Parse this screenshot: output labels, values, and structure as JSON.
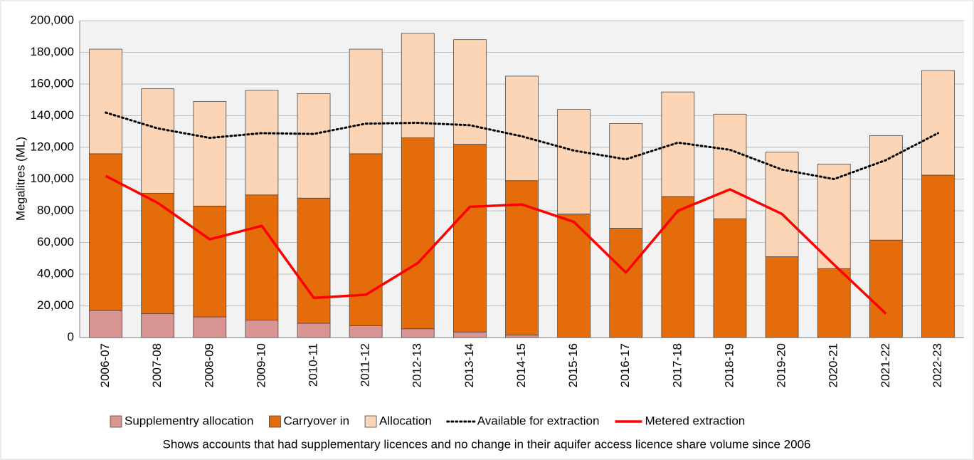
{
  "chart_data": {
    "type": "bar",
    "y_label": "Megalitres (ML)",
    "caption": "Shows accounts that had supplementary licences and no change in their aquifer access licence share volume since 2006",
    "categories": [
      "2006-07",
      "2007-08",
      "2008-09",
      "2009-10",
      "2010-11",
      "2011-12",
      "2012-13",
      "2013-14",
      "2014-15",
      "2015-16",
      "2016-17",
      "2017-18",
      "2018-19",
      "2019-20",
      "2020-21",
      "2021-22",
      "2022-23"
    ],
    "series": [
      {
        "name": "Supplementry allocation",
        "kind": "bar",
        "color": "#d99594",
        "values": [
          17000,
          15000,
          13000,
          11000,
          9000,
          7500,
          5500,
          3500,
          1500,
          0,
          0,
          0,
          0,
          0,
          0,
          0,
          0
        ]
      },
      {
        "name": "Carryover in",
        "kind": "bar",
        "color": "#e46c0a",
        "values": [
          99000,
          76000,
          70000,
          79000,
          79000,
          108500,
          120500,
          118500,
          97500,
          78000,
          69000,
          89000,
          75000,
          51000,
          43500,
          61500,
          102500
        ]
      },
      {
        "name": "Allocation",
        "kind": "bar",
        "color": "#fbd5b5",
        "values": [
          66000,
          66000,
          66000,
          66000,
          66000,
          66000,
          66000,
          66000,
          66000,
          66000,
          66000,
          66000,
          66000,
          66000,
          66000,
          66000,
          66000
        ]
      },
      {
        "name": "Available for extraction",
        "kind": "line",
        "style": "dotted",
        "color": "#000000",
        "values": [
          142000,
          132000,
          126000,
          129000,
          128500,
          135000,
          135500,
          134000,
          127000,
          118000,
          112500,
          123000,
          118500,
          106000,
          100000,
          112000,
          129000
        ]
      },
      {
        "name": "Metered extraction",
        "kind": "line",
        "style": "solid",
        "color": "#ff0000",
        "values": [
          102000,
          85000,
          62000,
          70500,
          25000,
          27000,
          47000,
          82500,
          84000,
          73000,
          41000,
          80000,
          93500,
          78000,
          46000,
          15000,
          null
        ]
      }
    ],
    "ylim": [
      0,
      200000
    ],
    "yticks": [
      0,
      {
        "value": 20000,
        "label": "20,000"
      },
      {
        "value": 40000,
        "label": "40,000"
      },
      {
        "value": 60000,
        "label": "60,000"
      },
      {
        "value": 80000,
        "label": "80,000"
      },
      {
        "value": 100000,
        "label": "100,000"
      },
      {
        "value": 120000,
        "label": "120,000"
      },
      {
        "value": 140000,
        "label": "140,000"
      },
      {
        "value": 160000,
        "label": "160,000"
      },
      {
        "value": 180000,
        "label": "180,000"
      },
      {
        "value": 200000,
        "label": "200,000"
      }
    ],
    "grid": true,
    "legend": "bottom"
  }
}
